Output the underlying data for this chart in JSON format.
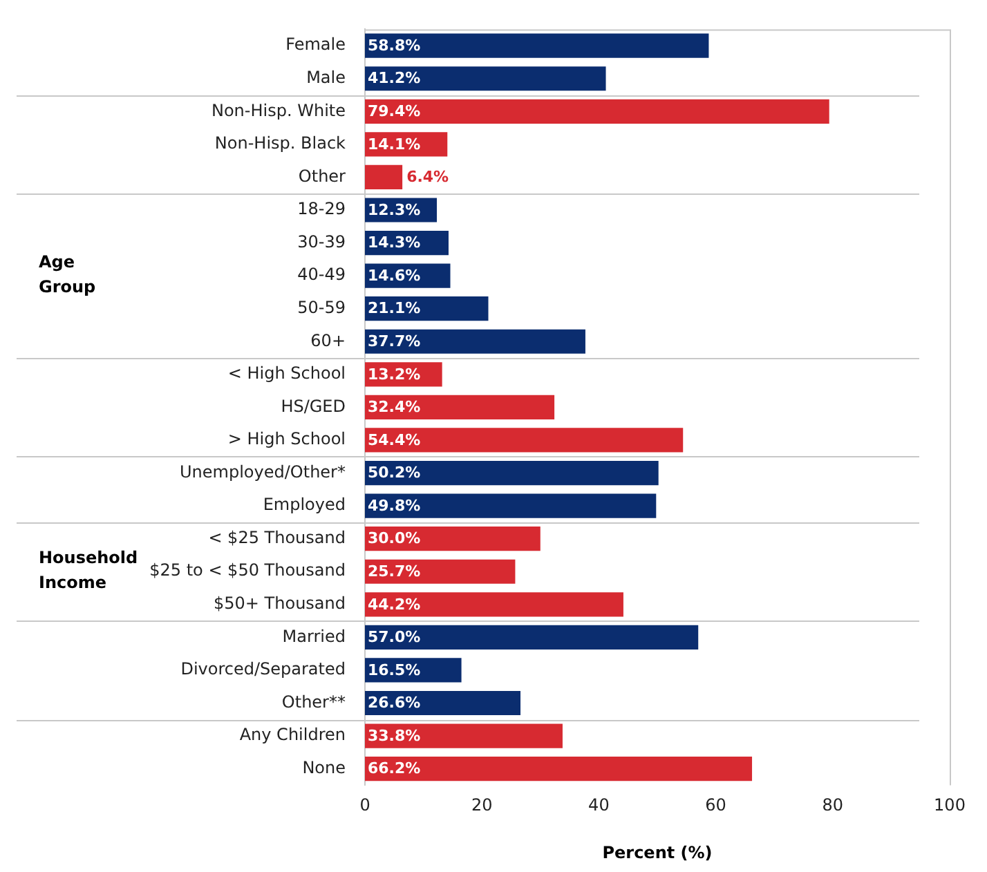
{
  "chart_data": {
    "type": "bar",
    "orientation": "horizontal",
    "categories": [
      "Female",
      "Male",
      "Non-Hisp. White",
      "Non-Hisp. Black",
      "Other",
      "18-29",
      "30-39",
      "40-49",
      "50-59",
      "60+",
      "< High School",
      "HS/GED",
      "> High School",
      "Unemployed/Other*",
      "Employed",
      "< $25 Thousand",
      "$25 to < $50 Thousand",
      "$50+ Thousand",
      "Married",
      "Divorced/Separated",
      "Other**",
      "Any Children",
      "None"
    ],
    "values": [
      58.8,
      41.2,
      79.4,
      14.1,
      6.4,
      12.3,
      14.3,
      14.6,
      21.1,
      37.7,
      13.2,
      32.4,
      54.4,
      50.2,
      49.8,
      30.0,
      25.7,
      44.2,
      57.0,
      16.5,
      26.6,
      33.8,
      66.2
    ],
    "colors": [
      "#0b2d6f",
      "#0b2d6f",
      "#d72a31",
      "#d72a31",
      "#d72a31",
      "#0b2d6f",
      "#0b2d6f",
      "#0b2d6f",
      "#0b2d6f",
      "#0b2d6f",
      "#d72a31",
      "#d72a31",
      "#d72a31",
      "#0b2d6f",
      "#0b2d6f",
      "#d72a31",
      "#d72a31",
      "#d72a31",
      "#0b2d6f",
      "#0b2d6f",
      "#0b2d6f",
      "#d72a31",
      "#d72a31"
    ],
    "value_labels": [
      "58.8%",
      "41.2%",
      "79.4%",
      "14.1%",
      "6.4%",
      "12.3%",
      "14.3%",
      "14.6%",
      "21.1%",
      "37.7%",
      "13.2%",
      "32.4%",
      "54.4%",
      "50.2%",
      "49.8%",
      "30.0%",
      "25.7%",
      "44.2%",
      "57.0%",
      "16.5%",
      "26.6%",
      "33.8%",
      "66.2%"
    ],
    "xlim": [
      0,
      100
    ],
    "xticks": [
      0,
      20,
      40,
      60,
      80,
      100
    ],
    "xlabel": "Percent (%)",
    "grid": false,
    "legend": false,
    "annotations": [
      "Age Group",
      "Household Income"
    ]
  }
}
